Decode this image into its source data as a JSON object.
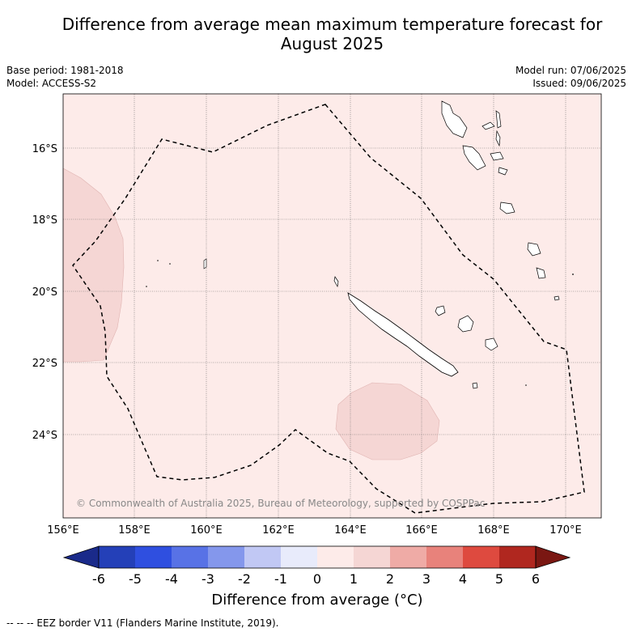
{
  "title_line1": "Difference from average mean maximum temperature forecast for",
  "title_line2": "August 2025",
  "meta": {
    "base_period": "Base period: 1981-2018",
    "model": "Model: ACCESS-S2",
    "model_run": "Model run: 07/06/2025",
    "issued": "Issued: 09/06/2025"
  },
  "map": {
    "lon_labels": [
      "156°E",
      "158°E",
      "160°E",
      "162°E",
      "164°E",
      "166°E",
      "168°E",
      "170°E"
    ],
    "lat_labels": [
      "16°S",
      "18°S",
      "20°S",
      "22°S",
      "24°S"
    ],
    "copyright": "© Commonwealth of Australia 2025, Bureau of Meteorology, supported by COSPPac",
    "background_color": "#fdebe9",
    "anomaly_color": "#f5d6d4"
  },
  "colorbar": {
    "ticks": [
      "-6",
      "-5",
      "-4",
      "-3",
      "-2",
      "-1",
      "0",
      "1",
      "2",
      "3",
      "4",
      "5",
      "6"
    ],
    "colors": [
      "#1a2a8a",
      "#2440b8",
      "#2f4fe0",
      "#5872e6",
      "#8497ec",
      "#c1c8f4",
      "#e8ebfb",
      "#fdebe9",
      "#f5d6d4",
      "#efaba6",
      "#e8827b",
      "#de4a3f",
      "#b0271f",
      "#7a1712"
    ],
    "label": "Difference from average (°C)"
  },
  "eez_legend": "--  --  -- EEZ border V11 (Flanders Marine Institute, 2019)."
}
